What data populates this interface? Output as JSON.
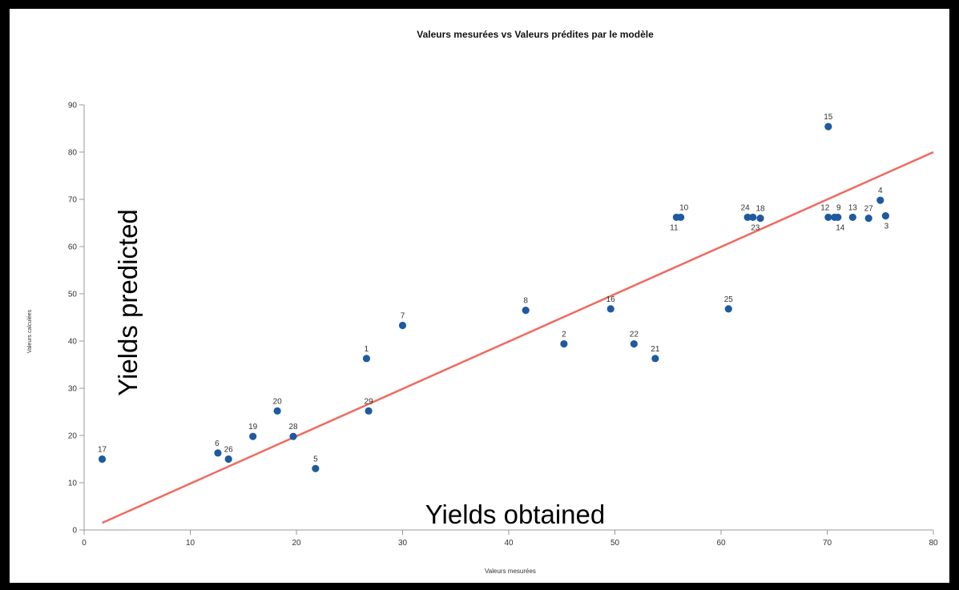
{
  "chart_data": {
    "type": "scatter",
    "title": "Valeurs mesurées vs Valeurs prédites par le modèle",
    "xlabel": "Valeurs mesurées",
    "ylabel": "Valeurs calculées",
    "xlim": [
      0,
      80
    ],
    "ylim": [
      0,
      90
    ],
    "xticks": [
      0,
      10,
      20,
      30,
      40,
      50,
      60,
      70,
      80
    ],
    "yticks": [
      0,
      10,
      20,
      30,
      40,
      50,
      60,
      70,
      80,
      90
    ],
    "grid": false,
    "point_color": "#1f5aa0",
    "line_color": "#f06a5e",
    "points": [
      {
        "label": "17",
        "x": 1.7,
        "y": 15.0
      },
      {
        "label": "6",
        "x": 12.6,
        "y": 16.3
      },
      {
        "label": "26",
        "x": 13.6,
        "y": 15.0
      },
      {
        "label": "19",
        "x": 15.9,
        "y": 19.8
      },
      {
        "label": "20",
        "x": 18.2,
        "y": 25.2
      },
      {
        "label": "28",
        "x": 19.7,
        "y": 19.8
      },
      {
        "label": "5",
        "x": 21.8,
        "y": 13.0
      },
      {
        "label": "1",
        "x": 26.6,
        "y": 36.3
      },
      {
        "label": "29",
        "x": 26.8,
        "y": 25.2
      },
      {
        "label": "7",
        "x": 30.0,
        "y": 43.3
      },
      {
        "label": "8",
        "x": 41.6,
        "y": 46.5
      },
      {
        "label": "2",
        "x": 45.2,
        "y": 39.4
      },
      {
        "label": "16",
        "x": 49.6,
        "y": 46.8
      },
      {
        "label": "22",
        "x": 51.8,
        "y": 39.4
      },
      {
        "label": "21",
        "x": 53.8,
        "y": 36.3
      },
      {
        "label": "11",
        "x": 55.8,
        "y": 66.2
      },
      {
        "label": "10",
        "x": 56.2,
        "y": 66.2
      },
      {
        "label": "25",
        "x": 60.7,
        "y": 46.8
      },
      {
        "label": "24",
        "x": 62.5,
        "y": 66.2
      },
      {
        "label": "23",
        "x": 63.0,
        "y": 66.2
      },
      {
        "label": "18",
        "x": 63.7,
        "y": 66.0
      },
      {
        "label": "15",
        "x": 70.1,
        "y": 85.4
      },
      {
        "label": "12",
        "x": 70.1,
        "y": 66.2
      },
      {
        "label": "9",
        "x": 70.7,
        "y": 66.2
      },
      {
        "label": "14",
        "x": 71.0,
        "y": 66.2
      },
      {
        "label": "13",
        "x": 72.4,
        "y": 66.2
      },
      {
        "label": "27",
        "x": 73.9,
        "y": 66.0
      },
      {
        "label": "4",
        "x": 75.0,
        "y": 69.8
      },
      {
        "label": "3",
        "x": 75.5,
        "y": 66.5
      }
    ],
    "fit_line": {
      "x": [
        1.7,
        80
      ],
      "y": [
        1.5,
        80
      ]
    }
  },
  "overlays": {
    "y_label": "Yields predicted",
    "x_label": "Yields obtained"
  }
}
